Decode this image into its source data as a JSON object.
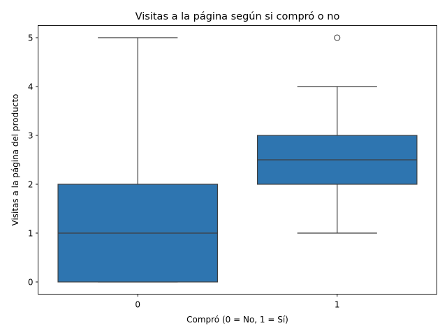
{
  "chart_data": {
    "type": "box",
    "title": "Visitas a la página según si compró o no",
    "xlabel": "Compró (0 = No, 1 = Sí)",
    "ylabel": "Visitas a la página del producto",
    "categories": [
      "0",
      "1"
    ],
    "ylim": [
      -0.25,
      5.25
    ],
    "yticks": [
      0,
      1,
      2,
      3,
      4,
      5
    ],
    "ytick_labels": [
      "0",
      "1",
      "2",
      "3",
      "4",
      "5"
    ],
    "boxes": [
      {
        "category": "0",
        "whisker_low": 0,
        "q1": 0,
        "median": 1,
        "q3": 2,
        "whisker_high": 5,
        "outliers": []
      },
      {
        "category": "1",
        "whisker_low": 1,
        "q1": 2,
        "median": 2.5,
        "q3": 3,
        "whisker_high": 4,
        "outliers": [
          5
        ]
      }
    ],
    "colors": {
      "box_fill": "#2e75b0",
      "line": "#3f3f3f",
      "axis": "#000000"
    }
  }
}
